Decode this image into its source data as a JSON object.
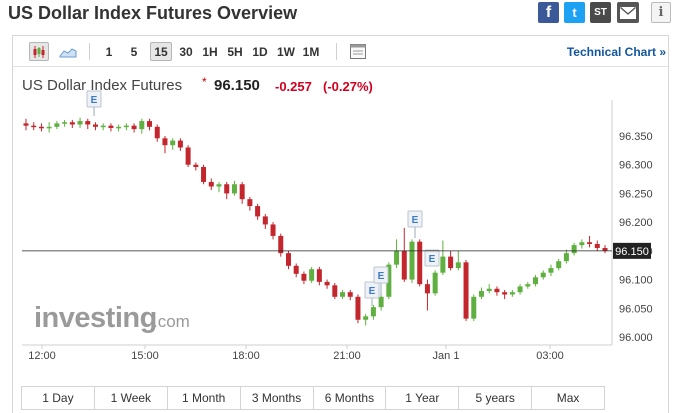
{
  "header": {
    "title": "US Dollar Index Futures Overview",
    "share": {
      "facebook": "f",
      "twitter": "t",
      "stocktwits": "ST",
      "info": "i"
    }
  },
  "toolbar": {
    "intervals": [
      "1",
      "5",
      "15",
      "30",
      "1H",
      "5H",
      "1D",
      "1W",
      "1M"
    ],
    "active_interval": "15",
    "technical_chart_label": "Technical Chart »"
  },
  "quote": {
    "name": "US Dollar Index Futures",
    "star": "*",
    "price": "96.150",
    "change": "-0.257",
    "change_pct": "(-0.27%)"
  },
  "colors": {
    "up": "#5fb040",
    "down": "#c4262e",
    "link": "#1256a0",
    "negative": "#d1001f"
  },
  "chart_data": {
    "type": "candlestick",
    "x_tick_labels": [
      "12:00",
      "15:00",
      "18:00",
      "21:00",
      "Jan 1",
      "03:00"
    ],
    "y_tick_labels": [
      "96.350",
      "96.300",
      "96.250",
      "96.200",
      "96.150",
      "96.100",
      "96.050",
      "96.000"
    ],
    "ylim": [
      96.0,
      96.4
    ],
    "last_price_label": "96.150",
    "last_price": 96.15,
    "event_marker_label": "E",
    "candles": [
      [
        96.372,
        96.368,
        96.38,
        96.36
      ],
      [
        96.368,
        96.366,
        96.374,
        96.36
      ],
      [
        96.366,
        96.364,
        96.372,
        96.358
      ],
      [
        96.364,
        96.366,
        96.374,
        96.356
      ],
      [
        96.366,
        96.372,
        96.376,
        96.362
      ],
      [
        96.372,
        96.374,
        96.378,
        96.366
      ],
      [
        96.374,
        96.37,
        96.378,
        96.364
      ],
      [
        96.37,
        96.376,
        96.382,
        96.364
      ],
      [
        96.376,
        96.37,
        96.38,
        96.362
      ],
      [
        96.37,
        96.366,
        96.374,
        96.36
      ],
      [
        96.366,
        96.368,
        96.372,
        96.36
      ],
      [
        96.368,
        96.364,
        96.372,
        96.358
      ],
      [
        96.364,
        96.366,
        96.37,
        96.358
      ],
      [
        96.366,
        96.368,
        96.372,
        96.36
      ],
      [
        96.368,
        96.362,
        96.372,
        96.356
      ],
      [
        96.362,
        96.376,
        96.38,
        96.354
      ],
      [
        96.376,
        96.366,
        96.38,
        96.36
      ],
      [
        96.366,
        96.346,
        96.37,
        96.34
      ],
      [
        96.346,
        96.334,
        96.35,
        96.32
      ],
      [
        96.334,
        96.342,
        96.346,
        96.326
      ],
      [
        96.342,
        96.33,
        96.346,
        96.324
      ],
      [
        96.33,
        96.3,
        96.334,
        96.296
      ],
      [
        96.3,
        96.296,
        96.304,
        96.29
      ],
      [
        96.296,
        96.27,
        96.3,
        96.266
      ],
      [
        96.27,
        96.262,
        96.276,
        96.256
      ],
      [
        96.262,
        96.266,
        96.27,
        96.252
      ],
      [
        96.266,
        96.25,
        96.27,
        96.24
      ],
      [
        96.25,
        96.266,
        96.272,
        96.246
      ],
      [
        96.266,
        96.24,
        96.27,
        96.232
      ],
      [
        96.24,
        96.228,
        96.244,
        96.22
      ],
      [
        96.228,
        96.21,
        96.232,
        96.204
      ],
      [
        96.21,
        96.196,
        96.214,
        96.188
      ],
      [
        96.196,
        96.176,
        96.2,
        96.17
      ],
      [
        96.176,
        96.146,
        96.18,
        96.14
      ],
      [
        96.146,
        96.124,
        96.15,
        96.118
      ],
      [
        96.124,
        96.11,
        96.128,
        96.104
      ],
      [
        96.11,
        96.098,
        96.114,
        96.092
      ],
      [
        96.098,
        96.118,
        96.122,
        96.094
      ],
      [
        96.118,
        96.096,
        96.122,
        96.09
      ],
      [
        96.096,
        96.09,
        96.1,
        96.084
      ],
      [
        96.09,
        96.07,
        96.094,
        96.066
      ],
      [
        96.07,
        96.078,
        96.082,
        96.066
      ],
      [
        96.078,
        96.07,
        96.082,
        96.064
      ],
      [
        96.07,
        96.03,
        96.074,
        96.024
      ],
      [
        96.03,
        96.036,
        96.04,
        96.02
      ],
      [
        96.036,
        96.052,
        96.056,
        96.03
      ],
      [
        96.052,
        96.07,
        96.074,
        96.046
      ],
      [
        96.07,
        96.126,
        96.13,
        96.066
      ],
      [
        96.126,
        96.15,
        96.17,
        96.12
      ],
      [
        96.15,
        96.1,
        96.19,
        96.096
      ],
      [
        96.1,
        96.166,
        96.17,
        96.094
      ],
      [
        96.166,
        96.092,
        96.17,
        96.088
      ],
      [
        96.092,
        96.076,
        96.1,
        96.046
      ],
      [
        96.076,
        96.112,
        96.116,
        96.072
      ],
      [
        96.112,
        96.14,
        96.168,
        96.108
      ],
      [
        96.14,
        96.12,
        96.15,
        96.116
      ],
      [
        96.12,
        96.13,
        96.15,
        96.116
      ],
      [
        96.13,
        96.032,
        96.134,
        96.028
      ],
      [
        96.032,
        96.07,
        96.074,
        96.028
      ],
      [
        96.07,
        96.08,
        96.086,
        96.066
      ],
      [
        96.08,
        96.084,
        96.092,
        96.076
      ],
      [
        96.084,
        96.078,
        96.088,
        96.072
      ],
      [
        96.078,
        96.074,
        96.082,
        96.066
      ],
      [
        96.074,
        96.078,
        96.082,
        96.07
      ],
      [
        96.078,
        96.088,
        96.092,
        96.074
      ],
      [
        96.088,
        96.092,
        96.096,
        96.084
      ],
      [
        96.092,
        96.104,
        96.108,
        96.088
      ],
      [
        96.104,
        96.112,
        96.116,
        96.1
      ],
      [
        96.112,
        96.12,
        96.126,
        96.106
      ],
      [
        96.12,
        96.132,
        96.136,
        96.116
      ],
      [
        96.132,
        96.146,
        96.152,
        96.128
      ],
      [
        96.146,
        96.16,
        96.164,
        96.142
      ],
      [
        96.16,
        96.165,
        96.17,
        96.154
      ],
      [
        96.165,
        96.162,
        96.176,
        96.156
      ],
      [
        96.162,
        96.155,
        96.168,
        96.15
      ],
      [
        96.155,
        96.15,
        96.16,
        96.146
      ]
    ]
  },
  "range_buttons": [
    "1 Day",
    "1 Week",
    "1 Month",
    "3 Months",
    "6 Months",
    "1 Year",
    "5 years",
    "Max"
  ],
  "branding": {
    "logo": "investing",
    "logo_suffix": ".com"
  }
}
